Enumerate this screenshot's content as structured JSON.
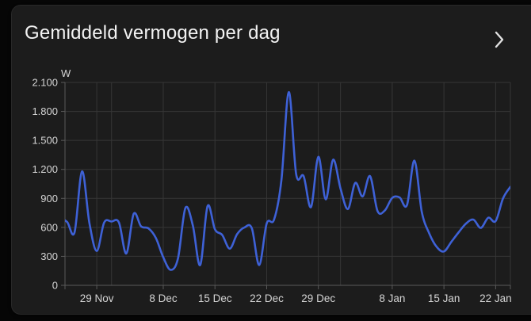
{
  "card": {
    "title": "Gemiddeld vermogen per dag"
  },
  "icons": {
    "header_chevron": "chevron-right"
  },
  "colors": {
    "page_bg": "#060606",
    "card_bg": "#1c1c1c",
    "card_border": "#282828",
    "title": "#f3f3f3",
    "chevron": "#e0e0e0",
    "line": "#3e61d6",
    "grid": "#363636",
    "axis": "#5a5a5a",
    "tick_label": "#d4d4d4",
    "unit_label": "#d4d4d4"
  },
  "chart_data": {
    "type": "line",
    "title": "Gemiddeld vermogen per dag",
    "unit": "W",
    "smooth": true,
    "grid": true,
    "legend_position": "none",
    "ylim": [
      0,
      2100
    ],
    "y_tick_values": [
      0,
      300,
      600,
      900,
      1200,
      1500,
      1800,
      2100
    ],
    "y_tick_labels": [
      "0",
      "300",
      "600",
      "900",
      "1.200",
      "1.500",
      "1.800",
      "2.100"
    ],
    "x_ticks": [
      {
        "i": 5,
        "label": "29 Nov"
      },
      {
        "i": 7,
        "label": ""
      },
      {
        "i": 14,
        "label": "8 Dec"
      },
      {
        "i": 21,
        "label": "15 Dec"
      },
      {
        "i": 28,
        "label": "22 Dec"
      },
      {
        "i": 35,
        "label": "29 Dec"
      },
      {
        "i": 38,
        "label": ""
      },
      {
        "i": 45,
        "label": "8 Jan"
      },
      {
        "i": 52,
        "label": "15 Jan"
      },
      {
        "i": 59,
        "label": "22 Jan"
      }
    ],
    "x": [
      "24 Nov",
      "25 Nov",
      "26 Nov",
      "27 Nov",
      "28 Nov",
      "29 Nov",
      "30 Nov",
      "1 Dec",
      "2 Dec",
      "3 Dec",
      "4 Dec",
      "5 Dec",
      "6 Dec",
      "7 Dec",
      "8 Dec",
      "9 Dec",
      "10 Dec",
      "11 Dec",
      "12 Dec",
      "13 Dec",
      "14 Dec",
      "15 Dec",
      "16 Dec",
      "17 Dec",
      "18 Dec",
      "19 Dec",
      "20 Dec",
      "21 Dec",
      "22 Dec",
      "23 Dec",
      "24 Dec",
      "25 Dec",
      "26 Dec",
      "27 Dec",
      "28 Dec",
      "29 Dec",
      "30 Dec",
      "31 Dec",
      "1 Jan",
      "2 Jan",
      "3 Jan",
      "4 Jan",
      "5 Jan",
      "6 Jan",
      "7 Jan",
      "8 Jan",
      "9 Jan",
      "10 Jan",
      "11 Jan",
      "12 Jan",
      "13 Jan",
      "14 Jan",
      "15 Jan",
      "16 Jan",
      "17 Jan",
      "18 Jan",
      "19 Jan",
      "20 Jan",
      "21 Jan",
      "22 Jan",
      "23 Jan",
      "24 Jan"
    ],
    "values": [
      700,
      655,
      550,
      1180,
      645,
      355,
      650,
      660,
      650,
      330,
      740,
      610,
      590,
      490,
      290,
      160,
      280,
      800,
      620,
      210,
      820,
      580,
      520,
      380,
      530,
      600,
      590,
      210,
      640,
      680,
      1090,
      2000,
      1150,
      1130,
      810,
      1330,
      890,
      1300,
      1000,
      790,
      1060,
      920,
      1130,
      770,
      775,
      905,
      910,
      830,
      1290,
      760,
      540,
      400,
      350,
      450,
      550,
      640,
      680,
      595,
      700,
      665,
      900,
      1020
    ]
  }
}
